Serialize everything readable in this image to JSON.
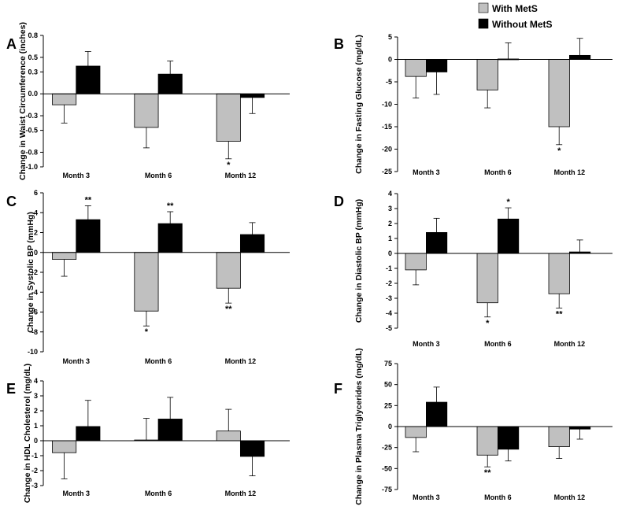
{
  "legend": [
    {
      "label": "With MetS",
      "color": "#c0c0c0"
    },
    {
      "label": "Without MetS",
      "color": "#000000"
    }
  ],
  "chart_data": [
    {
      "panel_label": "A",
      "type": "bar",
      "ylabel": "Change in Waist Circumference (inches)",
      "categories": [
        "Month 3",
        "Month 6",
        "Month 12"
      ],
      "ylim": [
        -1.0,
        0.8
      ],
      "ticks": [
        0.8,
        0.5,
        0.3,
        0.0,
        -0.3,
        -0.5,
        -0.8,
        -1.0
      ],
      "tick_labels": [
        "0.8",
        "0.5",
        "0.3",
        "0.0",
        "-0.3",
        "-0.5",
        "-0.8",
        "-1.0"
      ],
      "series": [
        {
          "name": "With MetS",
          "values": [
            -0.15,
            -0.46,
            -0.65
          ],
          "errors": [
            0.25,
            0.28,
            0.24
          ],
          "stars": [
            "",
            "",
            "*"
          ]
        },
        {
          "name": "Without MetS",
          "values": [
            0.38,
            0.27,
            -0.05
          ],
          "errors": [
            0.2,
            0.18,
            0.22
          ],
          "stars": [
            "",
            "",
            ""
          ]
        }
      ]
    },
    {
      "panel_label": "B",
      "type": "bar",
      "ylabel": "Change in Fasting Glucose (mg/dL)",
      "categories": [
        "Month 3",
        "Month 6",
        "Month 12"
      ],
      "ylim": [
        -25,
        5
      ],
      "ticks": [
        5,
        0,
        -5,
        -10,
        -15,
        -20,
        -25
      ],
      "tick_labels": [
        "5",
        "0",
        "-5",
        "-10",
        "-15",
        "-20",
        "-25"
      ],
      "series": [
        {
          "name": "With MetS",
          "values": [
            -3.8,
            -6.8,
            -15.0
          ],
          "errors": [
            4.8,
            4.0,
            4.0
          ],
          "stars": [
            "",
            "",
            "*"
          ]
        },
        {
          "name": "Without MetS",
          "values": [
            -2.8,
            0.1,
            0.9
          ],
          "errors": [
            5.0,
            3.6,
            3.8
          ],
          "stars": [
            "",
            "",
            ""
          ]
        }
      ]
    },
    {
      "panel_label": "C",
      "type": "bar",
      "ylabel": "Change in Systolic BP (mmHg)",
      "categories": [
        "Month 3",
        "Month 6",
        "Month 12"
      ],
      "ylim": [
        -10,
        6
      ],
      "ticks": [
        6,
        4,
        2,
        0,
        -2,
        -4,
        -6,
        -8,
        -10
      ],
      "tick_labels": [
        "6",
        "4",
        "2",
        "0",
        "-2",
        "-4",
        "-6",
        "-8",
        "-10"
      ],
      "series": [
        {
          "name": "With MetS",
          "values": [
            -0.7,
            -5.9,
            -3.6
          ],
          "errors": [
            1.7,
            1.5,
            1.5
          ],
          "stars": [
            "",
            "*",
            "**"
          ]
        },
        {
          "name": "Without MetS",
          "values": [
            3.3,
            2.9,
            1.8
          ],
          "errors": [
            1.4,
            1.2,
            1.2
          ],
          "stars": [
            "**",
            "**",
            ""
          ]
        }
      ]
    },
    {
      "panel_label": "D",
      "type": "bar",
      "ylabel": "Change in Diastolic BP (mmHg)",
      "categories": [
        "Month 3",
        "Month 6",
        "Month 12"
      ],
      "ylim": [
        -5,
        4
      ],
      "ticks": [
        4,
        3,
        2,
        1,
        0,
        -1,
        -2,
        -3,
        -4,
        -5
      ],
      "tick_labels": [
        "4",
        "3",
        "2",
        "1",
        "0",
        "-1",
        "-2",
        "-3",
        "-4",
        "-5"
      ],
      "series": [
        {
          "name": "With MetS",
          "values": [
            -1.1,
            -3.3,
            -2.7
          ],
          "errors": [
            1.0,
            0.95,
            0.95
          ],
          "stars": [
            "",
            "*",
            "**"
          ]
        },
        {
          "name": "Without MetS",
          "values": [
            1.4,
            2.3,
            0.1
          ],
          "errors": [
            0.95,
            0.75,
            0.8
          ],
          "stars": [
            "",
            "*",
            ""
          ]
        }
      ]
    },
    {
      "panel_label": "E",
      "type": "bar",
      "ylabel": "Change in HDL Cholesterol (mg/dL)",
      "categories": [
        "Month 3",
        "Month 6",
        "Month 12"
      ],
      "ylim": [
        -3,
        4
      ],
      "ticks": [
        4,
        3,
        2,
        1,
        0,
        -1,
        -2,
        -3
      ],
      "tick_labels": [
        "4",
        "3",
        "2",
        "1",
        "0",
        "-1",
        "-2",
        "-3"
      ],
      "series": [
        {
          "name": "With MetS",
          "values": [
            -0.8,
            0.05,
            0.65
          ],
          "errors": [
            1.75,
            1.45,
            1.45
          ],
          "stars": [
            "",
            "",
            ""
          ]
        },
        {
          "name": "Without MetS",
          "values": [
            0.95,
            1.45,
            -1.05
          ],
          "errors": [
            1.75,
            1.45,
            1.3
          ],
          "stars": [
            "",
            "",
            ""
          ]
        }
      ]
    },
    {
      "panel_label": "F",
      "type": "bar",
      "ylabel": "Change in Plasma Triglycerides (mg/dL)",
      "categories": [
        "Month 3",
        "Month 6",
        "Month 12"
      ],
      "ylim": [
        -75,
        75
      ],
      "ticks": [
        75,
        50,
        25,
        0,
        -25,
        -50,
        -75
      ],
      "tick_labels": [
        "75",
        "50",
        "25",
        "0",
        "-25",
        "-50",
        "-75"
      ],
      "series": [
        {
          "name": "With MetS",
          "values": [
            -13,
            -34,
            -24
          ],
          "errors": [
            17,
            14,
            14
          ],
          "stars": [
            "",
            "**",
            ""
          ]
        },
        {
          "name": "Without MetS",
          "values": [
            29,
            -27,
            -3
          ],
          "errors": [
            18,
            14,
            12
          ],
          "stars": [
            "",
            "",
            ""
          ]
        }
      ]
    }
  ]
}
